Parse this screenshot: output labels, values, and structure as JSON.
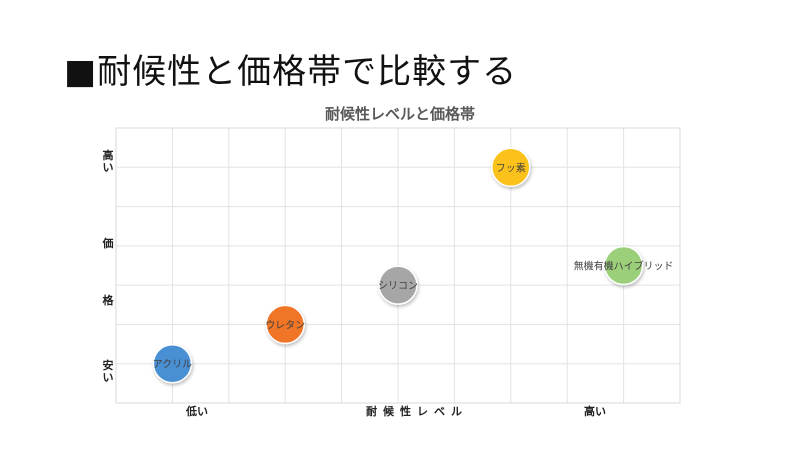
{
  "slide": {
    "title": "■耐候性と価格帯で比較する"
  },
  "chart_data": {
    "type": "scatter",
    "title": "耐候性レベルと価格帯",
    "xlabel": "耐候性レベル",
    "ylabel": "価格",
    "x_tick_labels": {
      "low": "低い",
      "high": "高い"
    },
    "y_tick_labels": {
      "low": "安い",
      "high": "高い"
    },
    "xlim": [
      0,
      5
    ],
    "ylim": [
      0,
      7
    ],
    "grid": true,
    "legend": "none",
    "points": [
      {
        "label": "アクリル",
        "x": 0.5,
        "y": 1,
        "color": "#4a8fd4"
      },
      {
        "label": "ウレタン",
        "x": 1.5,
        "y": 2,
        "color": "#f07427"
      },
      {
        "label": "シリコン",
        "x": 2.5,
        "y": 3,
        "color": "#a6a6a6"
      },
      {
        "label": "フッ素",
        "x": 3.5,
        "y": 6,
        "color": "#fcc21f"
      },
      {
        "label": "無機有機ハイブリッド",
        "x": 4.5,
        "y": 3.5,
        "color": "#9bcf7a"
      }
    ]
  }
}
